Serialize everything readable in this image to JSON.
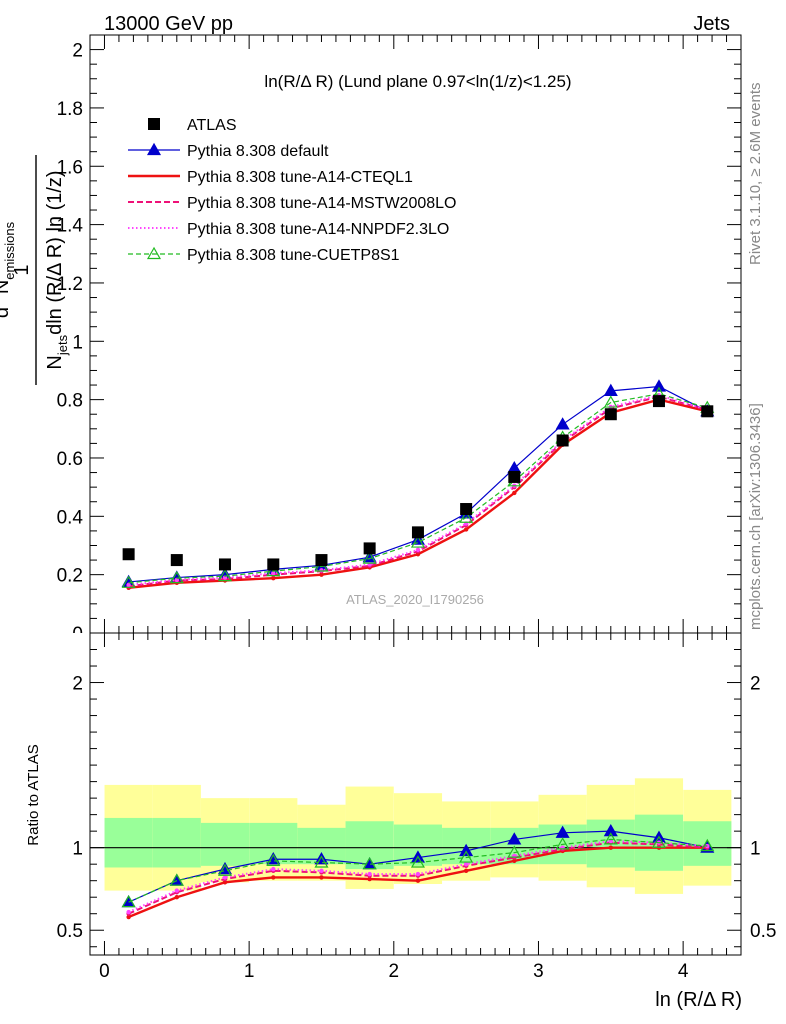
{
  "header": {
    "left": "13000 GeV pp",
    "right": "Jets"
  },
  "side_labels": {
    "rivet": "Rivet 3.1.10, ≥ 2.6M events",
    "mcplots": "mcplots.cern.ch [arXiv:1306.3436]"
  },
  "chart_data": [
    {
      "type": "line",
      "title": "ln(R/Δ R) (Lund plane 0.97<ln(1/z)<1.25)",
      "watermark": "ATLAS_2020_I1790256",
      "ylabel": {
        "frac_top": "1",
        "frac_bottom": "N",
        "frac_bottom_sub": "jets",
        "frac_bottom_rest": "dln (R/Δ R) ln (1/z)",
        "num": "d",
        "num_sup": "2",
        "num_rest": " N",
        "num_sub": "emissions"
      },
      "xlim": [
        -0.1,
        4.4
      ],
      "ylim": [
        0,
        2.05
      ],
      "y_ticks": [
        "0.2",
        "0.4",
        "0.6",
        "0.8",
        "1",
        "1.2",
        "1.4",
        "1.6",
        "1.8",
        "2"
      ],
      "y_tick_values": [
        0.2,
        0.4,
        0.6,
        0.8,
        1.0,
        1.2,
        1.4,
        1.6,
        1.8,
        2.0
      ],
      "x": [
        0.167,
        0.5,
        0.833,
        1.167,
        1.5,
        1.833,
        2.167,
        2.5,
        2.833,
        3.167,
        3.5,
        3.833,
        4.167
      ],
      "data": {
        "name": "ATLAS",
        "values": [
          0.27,
          0.25,
          0.235,
          0.235,
          0.25,
          0.29,
          0.345,
          0.425,
          0.535,
          0.66,
          0.75,
          0.795,
          0.76
        ]
      },
      "series": [
        {
          "name": "Pythia 8.308 default",
          "color": "#0000cc",
          "style": "solid",
          "marker": "triangle-filled",
          "values": [
            0.175,
            0.19,
            0.2,
            0.218,
            0.232,
            0.26,
            0.32,
            0.41,
            0.565,
            0.715,
            0.83,
            0.845,
            0.76
          ]
        },
        {
          "name": "Pythia 8.308 tune-A14-CTEQL1",
          "color": "#ee1111",
          "style": "solid-thick",
          "marker": "none",
          "values": [
            0.155,
            0.172,
            0.18,
            0.188,
            0.2,
            0.225,
            0.27,
            0.355,
            0.48,
            0.645,
            0.755,
            0.8,
            0.76
          ]
        },
        {
          "name": "Pythia 8.308 tune-A14-MSTW2008LO",
          "color": "#ee1177",
          "style": "dashed",
          "marker": "none",
          "values": [
            0.16,
            0.18,
            0.185,
            0.2,
            0.212,
            0.23,
            0.28,
            0.37,
            0.5,
            0.655,
            0.77,
            0.81,
            0.765
          ]
        },
        {
          "name": "Pythia 8.308 tune-A14-NNPDF2.3LO",
          "color": "#ff44ff",
          "style": "dotted",
          "marker": "none",
          "values": [
            0.165,
            0.182,
            0.19,
            0.205,
            0.215,
            0.235,
            0.285,
            0.375,
            0.505,
            0.66,
            0.775,
            0.815,
            0.765
          ]
        },
        {
          "name": "Pythia 8.308 tune-CUETP8S1",
          "color": "#22bb22",
          "style": "dashed",
          "marker": "triangle-open",
          "values": [
            0.172,
            0.188,
            0.195,
            0.212,
            0.228,
            0.255,
            0.31,
            0.395,
            0.52,
            0.67,
            0.79,
            0.82,
            0.772
          ]
        }
      ]
    },
    {
      "type": "line",
      "ylabel": "Ratio to ATLAS",
      "xlabel": "ln (R/Δ R)",
      "xlim": [
        -0.1,
        4.4
      ],
      "ylim": [
        0.35,
        2.3
      ],
      "x_ticks": [
        "0",
        "1",
        "2",
        "3",
        "4"
      ],
      "x_tick_values": [
        0,
        1,
        2,
        3,
        4
      ],
      "y_ticks": [
        "0.5",
        "1",
        "2"
      ],
      "y_tick_values": [
        0.5,
        1,
        2
      ],
      "reference_line": 1,
      "band_outer": {
        "color": "#ffff99",
        "low": [
          0.74,
          0.74,
          0.79,
          0.8,
          0.8,
          0.75,
          0.78,
          0.8,
          0.82,
          0.8,
          0.76,
          0.72,
          0.77
        ],
        "high": [
          1.38,
          1.38,
          1.3,
          1.3,
          1.26,
          1.37,
          1.33,
          1.28,
          1.28,
          1.32,
          1.38,
          1.42,
          1.35
        ]
      },
      "band_inner": {
        "color": "#99ff99",
        "low": [
          0.88,
          0.88,
          0.89,
          0.9,
          0.9,
          0.87,
          0.89,
          0.9,
          0.9,
          0.9,
          0.88,
          0.86,
          0.89
        ],
        "high": [
          1.18,
          1.18,
          1.15,
          1.15,
          1.12,
          1.16,
          1.14,
          1.12,
          1.12,
          1.14,
          1.17,
          1.2,
          1.16
        ]
      },
      "series": [
        {
          "name": "Pythia 8.308 default",
          "values": [
            0.67,
            0.8,
            0.87,
            0.93,
            0.93,
            0.9,
            0.94,
            0.98,
            1.05,
            1.09,
            1.1,
            1.06,
            1.0
          ]
        },
        {
          "name": "Pythia 8.308 tune-A14-CTEQL1",
          "values": [
            0.58,
            0.7,
            0.79,
            0.82,
            0.82,
            0.81,
            0.8,
            0.86,
            0.92,
            0.98,
            1.0,
            1.0,
            1.0
          ]
        },
        {
          "name": "Pythia 8.308 tune-A14-MSTW2008LO",
          "values": [
            0.6,
            0.73,
            0.81,
            0.86,
            0.85,
            0.83,
            0.83,
            0.89,
            0.94,
            0.99,
            1.03,
            1.02,
            1.0
          ]
        },
        {
          "name": "Pythia 8.308 tune-A14-NNPDF2.3LO",
          "values": [
            0.61,
            0.74,
            0.82,
            0.87,
            0.86,
            0.84,
            0.84,
            0.9,
            0.95,
            1.0,
            1.04,
            1.03,
            1.01
          ]
        },
        {
          "name": "Pythia 8.308 tune-CUETP8S1",
          "values": [
            0.67,
            0.8,
            0.86,
            0.92,
            0.91,
            0.9,
            0.91,
            0.94,
            0.97,
            1.02,
            1.05,
            1.03,
            1.01
          ]
        }
      ]
    }
  ]
}
